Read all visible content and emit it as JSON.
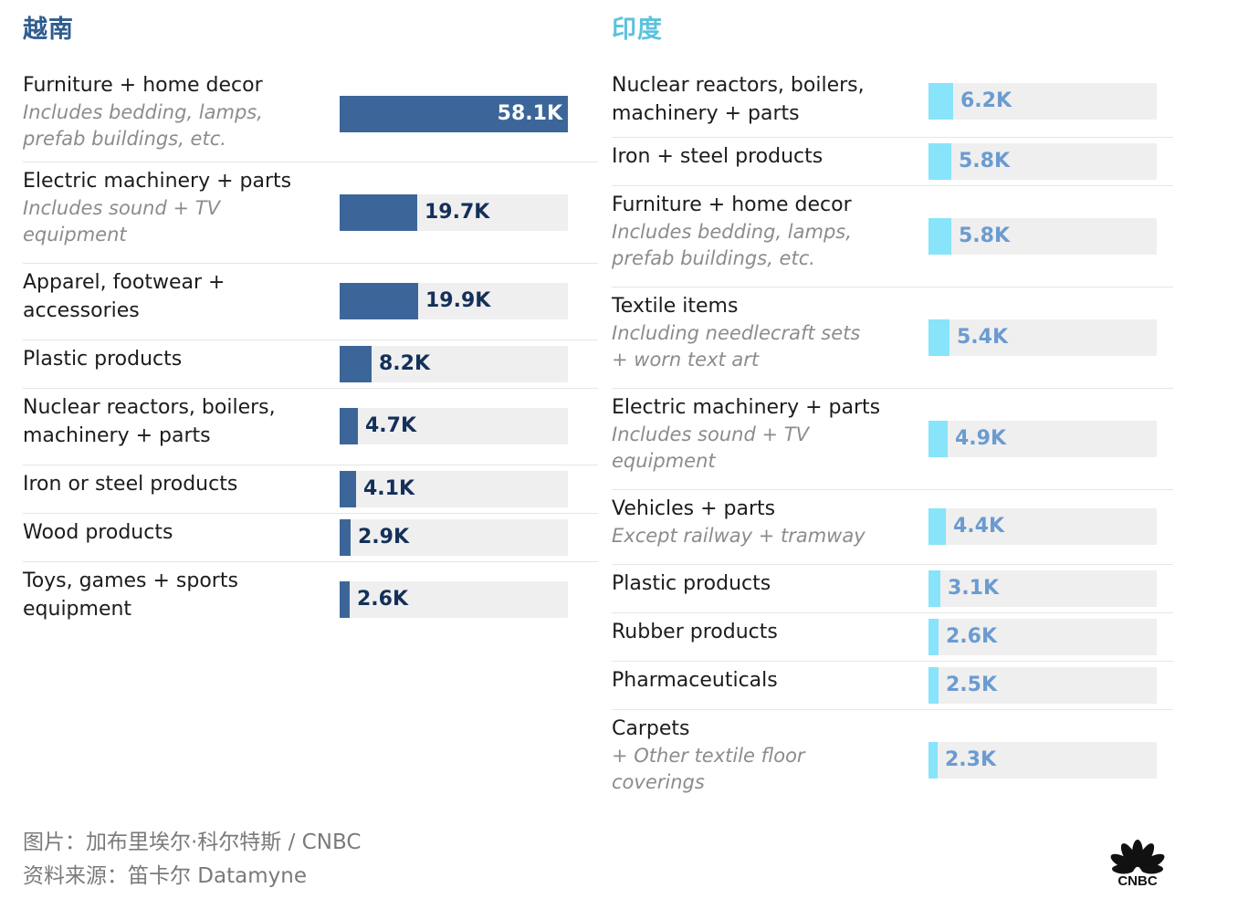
{
  "chart_data": [
    {
      "type": "bar",
      "orientation": "horizontal",
      "title": "越南",
      "title_color": "#2f5d8f",
      "bar_color": "#3c6699",
      "value_color_inside": "#ffffff",
      "value_color_outside": "#14305a",
      "track_color": "#efefef",
      "scale_max": 58.1,
      "rows": [
        {
          "name": "Furniture + home decor",
          "note": "Includes bedding, lamps, prefab buildings, etc.",
          "value": 58.1,
          "value_label": "58.1K"
        },
        {
          "name": "Electric machinery + parts",
          "note": "Includes sound + TV equipment",
          "value": 19.7,
          "value_label": "19.7K"
        },
        {
          "name": "Apparel, footwear + accessories",
          "note": "",
          "value": 19.9,
          "value_label": "19.9K"
        },
        {
          "name": "Plastic products",
          "note": "",
          "value": 8.2,
          "value_label": "8.2K"
        },
        {
          "name": "Nuclear reactors, boilers, machinery + parts",
          "note": "",
          "value": 4.7,
          "value_label": "4.7K"
        },
        {
          "name": "Iron or steel products",
          "note": "",
          "value": 4.1,
          "value_label": "4.1K"
        },
        {
          "name": "Wood products",
          "note": "",
          "value": 2.9,
          "value_label": "2.9K"
        },
        {
          "name": "Toys, games + sports equipment",
          "note": "",
          "value": 2.6,
          "value_label": "2.6K"
        }
      ]
    },
    {
      "type": "bar",
      "orientation": "horizontal",
      "title": "印度",
      "title_color": "#5bc3dd",
      "bar_color": "#87e4fa",
      "value_color_inside": "#ffffff",
      "value_color_outside": "#6b9bd1",
      "track_color": "#efefef",
      "scale_max": 58.1,
      "rows": [
        {
          "name": "Nuclear reactors, boilers, machinery + parts",
          "note": "",
          "value": 6.2,
          "value_label": "6.2K"
        },
        {
          "name": "Iron + steel products",
          "note": "",
          "value": 5.8,
          "value_label": "5.8K"
        },
        {
          "name": "Furniture + home decor",
          "note": "Includes bedding, lamps, prefab buildings, etc.",
          "value": 5.8,
          "value_label": "5.8K"
        },
        {
          "name": "Textile items",
          "note": "Including needlecraft sets + worn text art",
          "value": 5.4,
          "value_label": "5.4K"
        },
        {
          "name": "Electric machinery + parts",
          "note": "Includes sound + TV equipment",
          "value": 4.9,
          "value_label": "4.9K"
        },
        {
          "name": "Vehicles + parts",
          "note": "Except railway + tramway",
          "value": 4.4,
          "value_label": "4.4K"
        },
        {
          "name": "Plastic products",
          "note": "",
          "value": 3.1,
          "value_label": "3.1K"
        },
        {
          "name": "Rubber products",
          "note": "",
          "value": 2.6,
          "value_label": "2.6K"
        },
        {
          "name": "Pharmaceuticals",
          "note": "",
          "value": 2.5,
          "value_label": "2.5K"
        },
        {
          "name": "Carpets",
          "note": "+ Other textile floor coverings",
          "value": 2.3,
          "value_label": "2.3K"
        }
      ]
    }
  ],
  "footer": {
    "credit": "图片：加布里埃尔·科尔特斯 / CNBC",
    "source": "资料来源：笛卡尔 Datamyne"
  },
  "logo": {
    "text": "CNBC",
    "icon": "peacock-logo-icon"
  }
}
